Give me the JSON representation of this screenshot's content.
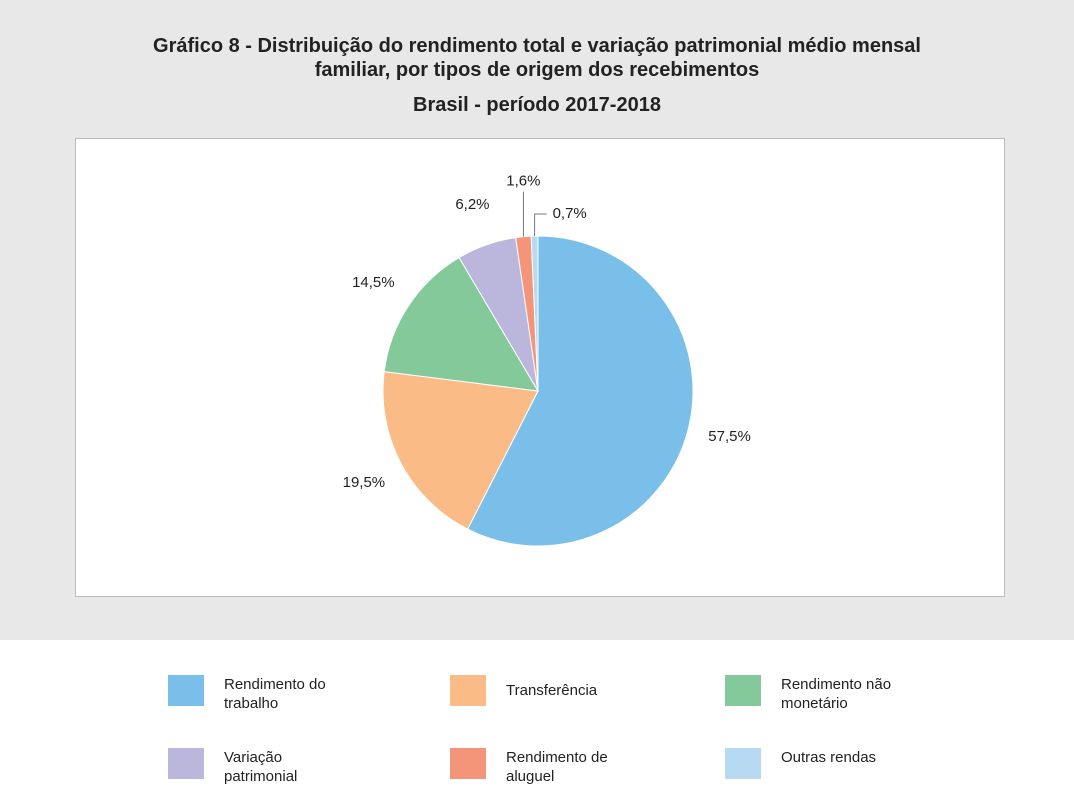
{
  "chart_data": {
    "type": "pie",
    "title": "Gráfico 8 - Distribuição do rendimento total e variação patrimonial médio mensal familiar, por tipos de origem dos recebimentos",
    "subtitle": "Brasil - período 2017-2018",
    "categories": [
      "Rendimento do trabalho",
      "Transferência",
      "Rendimento não monetário",
      "Variação patrimonial",
      "Rendimento de aluguel",
      "Outras rendas"
    ],
    "values": [
      57.5,
      19.5,
      14.5,
      6.2,
      1.6,
      0.7
    ],
    "value_labels": [
      "57,5%",
      "19,5%",
      "14,5%",
      "6,2%",
      "1,6%",
      "0,7%"
    ],
    "colors": [
      "#79bfea",
      "#fbbb87",
      "#84c99a",
      "#bbb6dc",
      "#f4957a",
      "#b7daf2"
    ]
  }
}
